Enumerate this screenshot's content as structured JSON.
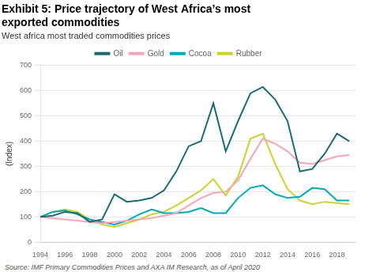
{
  "chart_data": {
    "type": "line",
    "title": [
      "Exhibit 5: Price trajectory of West Africa’s most",
      "exported commodities"
    ],
    "subtitle": "West africa most traded commodities prices",
    "ylabel": "(Index)",
    "annotations": [
      "Source: IMF Primary Commodities Prices and AXA IM Research, as of April 2020"
    ],
    "x": [
      1994,
      1995,
      1996,
      1997,
      1998,
      1999,
      2000,
      2001,
      2002,
      2003,
      2004,
      2005,
      2006,
      2007,
      2008,
      2009,
      2010,
      2011,
      2012,
      2013,
      2014,
      2015,
      2016,
      2017,
      2018,
      2019
    ],
    "series": [
      {
        "name": "Oil",
        "color": "#1a6b72",
        "values": [
          100,
          105,
          120,
          115,
          80,
          90,
          190,
          160,
          165,
          175,
          205,
          280,
          380,
          400,
          550,
          360,
          480,
          590,
          615,
          565,
          480,
          280,
          290,
          350,
          430,
          400
        ]
      },
      {
        "name": "Gold",
        "color": "#f4a6b8",
        "values": [
          100,
          95,
          90,
          85,
          80,
          75,
          80,
          85,
          90,
          95,
          105,
          115,
          145,
          175,
          195,
          200,
          245,
          330,
          410,
          390,
          360,
          315,
          310,
          325,
          340,
          345
        ]
      },
      {
        "name": "Cocoa",
        "color": "#00aabb",
        "values": [
          100,
          120,
          125,
          110,
          90,
          80,
          70,
          85,
          110,
          130,
          115,
          115,
          120,
          135,
          115,
          115,
          175,
          215,
          225,
          190,
          175,
          180,
          215,
          210,
          165,
          165
        ]
      },
      {
        "name": "Rubber",
        "color": "#c8d42e",
        "values": [
          100,
          120,
          130,
          120,
          90,
          70,
          60,
          75,
          90,
          110,
          120,
          145,
          175,
          205,
          250,
          185,
          260,
          410,
          430,
          310,
          210,
          165,
          150,
          160,
          155,
          150
        ]
      }
    ],
    "xlim": [
      1994,
      2019.5
    ],
    "xticks": [
      1994,
      1996,
      1998,
      2000,
      2002,
      2004,
      2006,
      2008,
      2010,
      2012,
      2014,
      2016,
      2018
    ],
    "ylim": [
      0,
      700
    ],
    "yticks": [
      0,
      100,
      200,
      300,
      400,
      500,
      600,
      700
    ],
    "grid": "y",
    "legend": "top"
  }
}
